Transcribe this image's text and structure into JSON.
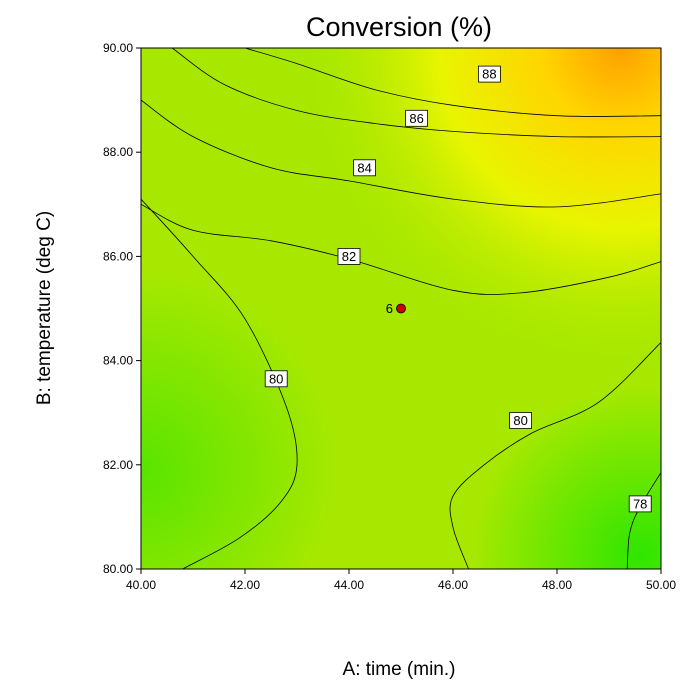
{
  "chart_data": {
    "type": "contour",
    "title": "Conversion (%)",
    "xlabel": "A: time (min.)",
    "ylabel": "B: temperature (deg C)",
    "xlim": [
      40,
      50
    ],
    "ylim": [
      80,
      90
    ],
    "xticks": [
      "40.00",
      "42.00",
      "44.00",
      "46.00",
      "48.00",
      "50.00"
    ],
    "yticks": [
      "80.00",
      "82.00",
      "84.00",
      "86.00",
      "88.00",
      "90.00"
    ],
    "colorscale": {
      "low": "#2fe600",
      "mid": "#c8f000",
      "high": "#ffa000"
    },
    "contours": [
      {
        "level": "88",
        "label_at": [
          46.7,
          89.5
        ],
        "path": [
          [
            42.0,
            90.0
          ],
          [
            43.0,
            89.7
          ],
          [
            44.5,
            89.2
          ],
          [
            46.0,
            88.9
          ],
          [
            48.0,
            88.7
          ],
          [
            50.0,
            88.7
          ]
        ]
      },
      {
        "level": "86",
        "label_at": [
          45.3,
          88.65
        ],
        "path": [
          [
            40.6,
            90.0
          ],
          [
            41.6,
            89.3
          ],
          [
            43.0,
            88.8
          ],
          [
            44.5,
            88.55
          ],
          [
            46.0,
            88.4
          ],
          [
            48.0,
            88.3
          ],
          [
            50.0,
            88.3
          ]
        ]
      },
      {
        "level": "84",
        "label_at": [
          44.3,
          87.7
        ],
        "path": [
          [
            40.0,
            89.0
          ],
          [
            41.0,
            88.3
          ],
          [
            42.5,
            87.7
          ],
          [
            44.0,
            87.45
          ],
          [
            46.0,
            87.1
          ],
          [
            48.0,
            86.95
          ],
          [
            50.0,
            87.2
          ]
        ]
      },
      {
        "level": "82",
        "label_at": [
          44.0,
          86.0
        ],
        "path": [
          [
            40.0,
            87.0
          ],
          [
            41.0,
            86.5
          ],
          [
            42.5,
            86.3
          ],
          [
            44.0,
            85.95
          ],
          [
            46.0,
            85.35
          ],
          [
            47.3,
            85.3
          ],
          [
            49.0,
            85.6
          ],
          [
            50.0,
            85.9
          ]
        ]
      },
      {
        "level": "80",
        "label_at": [
          42.6,
          83.65
        ],
        "path": [
          [
            40.0,
            87.1
          ],
          [
            41.0,
            86.0
          ],
          [
            42.0,
            84.8
          ],
          [
            42.8,
            83.1
          ],
          [
            43.0,
            82.0
          ],
          [
            42.7,
            81.3
          ],
          [
            41.9,
            80.6
          ],
          [
            40.8,
            80.0
          ]
        ]
      },
      {
        "level": "80",
        "label_at": [
          47.3,
          82.85
        ],
        "path": [
          [
            46.3,
            80.0
          ],
          [
            46.0,
            80.8
          ],
          [
            46.0,
            81.4
          ],
          [
            46.6,
            82.0
          ],
          [
            47.5,
            82.6
          ],
          [
            48.8,
            83.2
          ],
          [
            50.0,
            84.35
          ]
        ]
      },
      {
        "level": "78",
        "label_at": [
          49.6,
          81.25
        ],
        "path": [
          [
            49.35,
            80.0
          ],
          [
            49.4,
            80.7
          ],
          [
            49.6,
            81.2
          ],
          [
            50.0,
            81.85
          ]
        ]
      }
    ],
    "points": [
      {
        "x": 45.0,
        "y": 85.0,
        "label": "6",
        "color": "#c80000"
      }
    ]
  }
}
